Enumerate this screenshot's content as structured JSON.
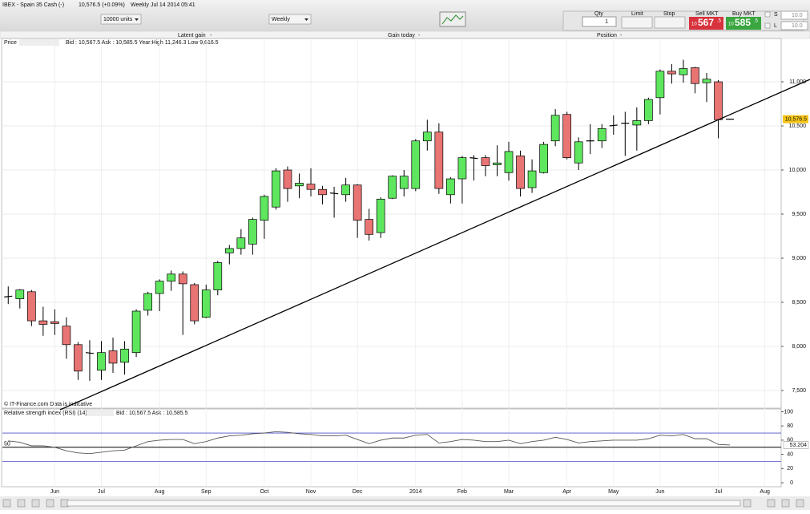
{
  "header": {
    "instrument": "IBEX - Spain 35 Cash (-)",
    "change": "10,576.5 (+0.09%)",
    "period": "Weekly",
    "timestamp": "Jul 14 2014 05:41"
  },
  "toolbar": {
    "units": "10000 units",
    "period": "Weekly",
    "qty_label": "Qty",
    "qty": "1",
    "limit_label": "Limit",
    "stop_label": "Stop",
    "sell_label": "Sell MKT",
    "sell": {
      "big": "10",
      "pips": "567",
      "fraction": ".5"
    },
    "buy_label": "Buy MKT",
    "buy": {
      "big": "10",
      "pips": "585",
      "fraction": ".5"
    },
    "stop_field": {
      "label": "S",
      "value": "10.0"
    },
    "limit_field": {
      "label": "L",
      "value": "10.0"
    }
  },
  "info_bar": {
    "latent_gain_label": "Latent gain",
    "latent_gain": "-",
    "gain_today_label": "Gain today",
    "gain_today": "-",
    "position_label": "Position",
    "position": "-"
  },
  "price_pane": {
    "label": "Price",
    "quote": "Bid : 10,567.5 Ask : 10,585.5 Year:High 11,246.3 Low 9,616.5",
    "footer": "© IT-Finance.com  Data is indicative"
  },
  "rsi_pane": {
    "label": "Relative strength index (RSI) (14)",
    "quote": "Bid : 10,567.5 Ask : 10,585.5"
  },
  "chart_data": [
    {
      "type": "candlestick",
      "up_color": "#5ee65e",
      "down_color": "#e87474",
      "open": [
        8560,
        8540,
        8620,
        8290,
        8280,
        8230,
        8020,
        7930,
        7730,
        7950,
        7820,
        7930,
        8410,
        8600,
        8740,
        8820,
        8700,
        8330,
        8640,
        9060,
        9110,
        9160,
        9430,
        9580,
        10000,
        9820,
        9840,
        9780,
        9740,
        9720,
        9830,
        9440,
        9290,
        9680,
        9790,
        9790,
        10330,
        10430,
        9720,
        9900,
        10140,
        10140,
        10060,
        9970,
        10160,
        9800,
        9970,
        10330,
        10630,
        10080,
        10330,
        10330,
        10500,
        10530,
        10510,
        10560,
        10820,
        11120,
        11080,
        11160,
        10990,
        11000,
        10576.5
      ],
      "high": [
        8680,
        8650,
        8640,
        8450,
        8420,
        8330,
        8050,
        8070,
        8060,
        8100,
        8060,
        8420,
        8620,
        8760,
        8860,
        8850,
        8720,
        8700,
        8970,
        9150,
        9330,
        9460,
        9720,
        10020,
        10040,
        9960,
        10020,
        9820,
        9810,
        9910,
        9840,
        9560,
        9690,
        9940,
        10000,
        10350,
        10570,
        10530,
        9920,
        10160,
        10170,
        10170,
        10280,
        10320,
        10220,
        10120,
        10320,
        10690,
        10660,
        10370,
        10520,
        10520,
        10620,
        10660,
        10710,
        10820,
        11140,
        11200,
        11250,
        11170,
        11100,
        11020,
        10580
      ],
      "low": [
        8480,
        8430,
        8230,
        8120,
        8130,
        7860,
        7620,
        7610,
        7620,
        7700,
        7680,
        7880,
        8350,
        8400,
        8630,
        8130,
        8250,
        8320,
        8580,
        8930,
        9040,
        9040,
        9220,
        9550,
        9640,
        9680,
        9700,
        9610,
        9460,
        9640,
        9230,
        9200,
        9230,
        9670,
        9700,
        9760,
        10220,
        9730,
        9620,
        9620,
        9880,
        9930,
        9930,
        9880,
        9700,
        9740,
        9960,
        10270,
        10120,
        10000,
        10180,
        10250,
        10400,
        10160,
        10220,
        10520,
        10630,
        10980,
        10990,
        10870,
        10770,
        10360,
        10570
      ],
      "close": [
        8570,
        8640,
        8290,
        8250,
        8260,
        8020,
        7720,
        7920,
        7930,
        7810,
        7970,
        8400,
        8600,
        8740,
        8820,
        8710,
        8290,
        8640,
        8950,
        9110,
        9230,
        9440,
        9700,
        9990,
        9790,
        9850,
        9780,
        9720,
        9730,
        9830,
        9430,
        9270,
        9670,
        9930,
        9930,
        10330,
        10430,
        9790,
        9900,
        10140,
        10130,
        10050,
        10080,
        10210,
        9790,
        9990,
        10290,
        10620,
        10140,
        10320,
        10330,
        10470,
        10510,
        10530,
        10560,
        10800,
        11120,
        11090,
        11150,
        10980,
        11030,
        10570,
        10576.5
      ],
      "xlim": [
        -0.5,
        66.4
      ],
      "xticks": [
        {
          "value": 4,
          "label": "Jun"
        },
        {
          "value": 8,
          "label": "Jul"
        },
        {
          "value": 13,
          "label": "Aug"
        },
        {
          "value": 17,
          "label": "Sep"
        },
        {
          "value": 22,
          "label": "Oct"
        },
        {
          "value": 26,
          "label": "Nov"
        },
        {
          "value": 30,
          "label": "Dec"
        },
        {
          "value": 35,
          "label": "2014"
        },
        {
          "value": 39,
          "label": "Feb"
        },
        {
          "value": 43,
          "label": "Mar"
        },
        {
          "value": 48,
          "label": "Apr"
        },
        {
          "value": 52,
          "label": "May"
        },
        {
          "value": 56,
          "label": "Jun"
        },
        {
          "value": 61,
          "label": "Jul"
        },
        {
          "value": 65,
          "label": "Aug"
        }
      ],
      "ylim": [
        7309,
        11382
      ],
      "yticks": [
        {
          "value": 7500,
          "label": "7,500"
        },
        {
          "value": 8000,
          "label": "8,000"
        },
        {
          "value": 8500,
          "label": "8,500"
        },
        {
          "value": 9000,
          "label": "9,000"
        },
        {
          "value": 9500,
          "label": "9,500"
        },
        {
          "value": 10000,
          "label": "10,000"
        },
        {
          "value": 10500,
          "label": "10,500"
        },
        {
          "value": 11000,
          "label": "11,000"
        }
      ],
      "last_price": {
        "value": 10576.5,
        "label": "10,576.5"
      },
      "grid": true
    },
    {
      "type": "line",
      "color": "#555555",
      "values": [
        59,
        57,
        52,
        52,
        50,
        45,
        42,
        41,
        43,
        45,
        46,
        52,
        58,
        60,
        61,
        61,
        55,
        58,
        63,
        66,
        67,
        69,
        70,
        72,
        71,
        69,
        68,
        66,
        66,
        67,
        61,
        55,
        60,
        63,
        63,
        67,
        68,
        56,
        58,
        61,
        60,
        58,
        58,
        60,
        55,
        58,
        60,
        64,
        61,
        56,
        58,
        59,
        60,
        60,
        60,
        62,
        67,
        66,
        68,
        62,
        62,
        54,
        53.204
      ],
      "ylim": [
        -5.6,
        102.8
      ],
      "yticks": [
        0,
        20,
        40,
        60,
        80,
        100
      ],
      "ref_lines": [
        30,
        50,
        70
      ],
      "ref_color": "#5050c8"
    }
  ]
}
